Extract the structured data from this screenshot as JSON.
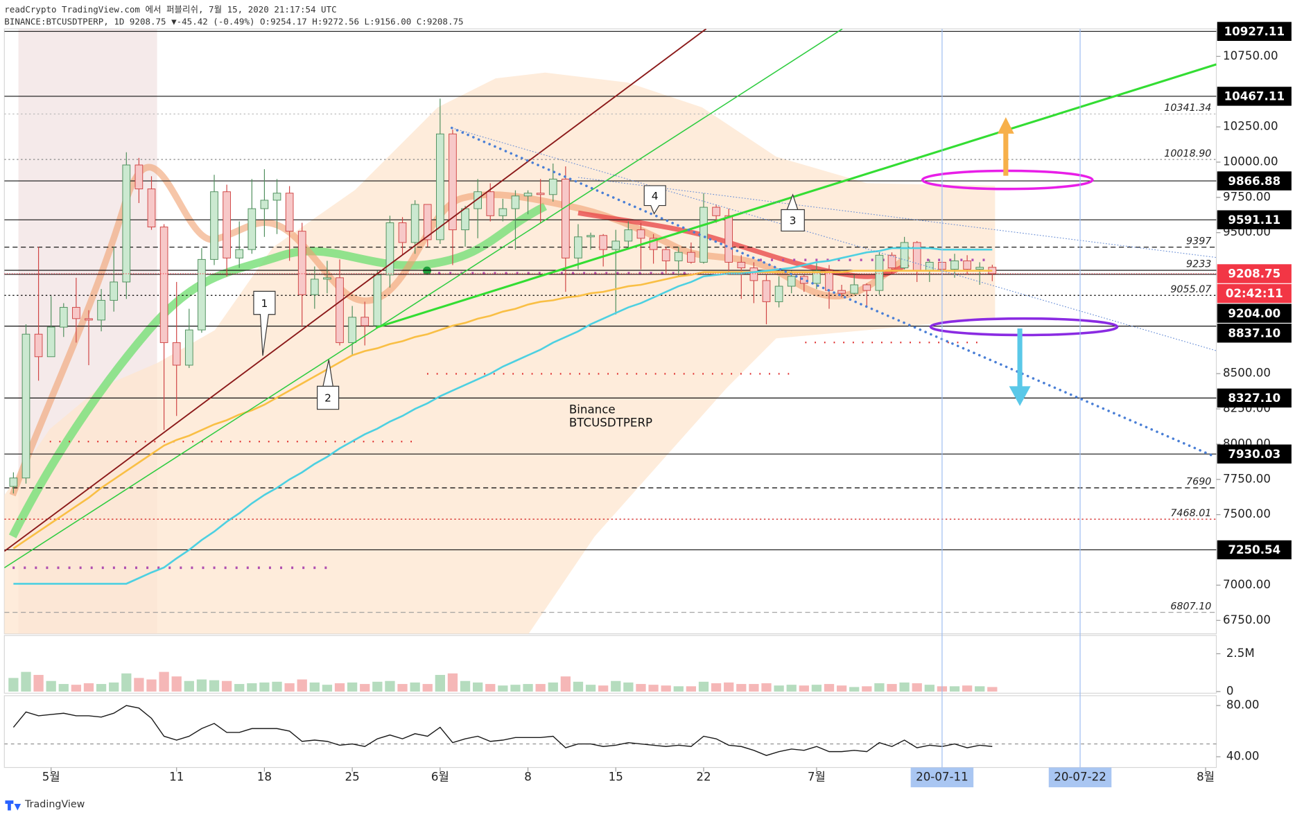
{
  "header": {
    "publisher": "readCrypto TradingView.com 에서 퍼블리쉬, 7월 15, 2020 21:17:54 UTC",
    "symbol_line": "BINANCE:BTCUSDTPERP, 1D 9208.75 ▼-45.42 (-0.49%) O:9254.17 H:9272.56 L:9156.00 C:9208.75"
  },
  "chart_data": [
    {
      "type": "candlestick",
      "x": [
        "2020-04-28",
        "2020-04-29",
        "2020-04-30",
        "2020-05-01",
        "2020-05-02",
        "2020-05-03",
        "2020-05-04",
        "2020-05-05",
        "2020-05-06",
        "2020-05-07",
        "2020-05-08",
        "2020-05-09",
        "2020-05-10",
        "2020-05-11",
        "2020-05-12",
        "2020-05-13",
        "2020-05-14",
        "2020-05-15",
        "2020-05-16",
        "2020-05-17",
        "2020-05-18",
        "2020-05-19",
        "2020-05-20",
        "2020-05-21",
        "2020-05-22",
        "2020-05-23",
        "2020-05-24",
        "2020-05-25",
        "2020-05-26",
        "2020-05-27",
        "2020-05-28",
        "2020-05-29",
        "2020-05-30",
        "2020-05-31",
        "2020-06-01",
        "2020-06-02",
        "2020-06-03",
        "2020-06-04",
        "2020-06-05",
        "2020-06-06",
        "2020-06-07",
        "2020-06-08",
        "2020-06-09",
        "2020-06-10",
        "2020-06-11",
        "2020-06-12",
        "2020-06-13",
        "2020-06-14",
        "2020-06-15",
        "2020-06-16",
        "2020-06-17",
        "2020-06-18",
        "2020-06-19",
        "2020-06-20",
        "2020-06-21",
        "2020-06-22",
        "2020-06-23",
        "2020-06-24",
        "2020-06-25",
        "2020-06-26",
        "2020-06-27",
        "2020-06-28",
        "2020-06-29",
        "2020-06-30",
        "2020-07-01",
        "2020-07-02",
        "2020-07-03",
        "2020-07-04",
        "2020-07-05",
        "2020-07-06",
        "2020-07-07",
        "2020-07-08",
        "2020-07-09",
        "2020-07-10",
        "2020-07-11",
        "2020-07-12",
        "2020-07-13",
        "2020-07-14",
        "2020-07-15"
      ],
      "open": [
        7700,
        7760,
        8780,
        8620,
        8830,
        8970,
        8890,
        8880,
        9020,
        9150,
        9980,
        9810,
        9540,
        8720,
        8560,
        8810,
        9310,
        9790,
        9320,
        9380,
        9670,
        9730,
        9780,
        9510,
        9060,
        9170,
        9180,
        8720,
        8900,
        8840,
        9200,
        9570,
        9430,
        9700,
        9450,
        10200,
        9520,
        9670,
        9790,
        9620,
        9670,
        9760,
        9780,
        9770,
        9880,
        9320,
        9470,
        9480,
        9380,
        9440,
        9520,
        9460,
        9380,
        9300,
        9360,
        9290,
        9680,
        9620,
        9290,
        9250,
        9160,
        9010,
        9120,
        9190,
        9140,
        9230,
        9090,
        9070,
        9130,
        9090,
        9340,
        9250,
        9430,
        9230,
        9290,
        9240,
        9300,
        9240,
        9254.17
      ],
      "high": [
        7800,
        8850,
        9400,
        9050,
        9000,
        9180,
        8950,
        9100,
        9400,
        10070,
        10030,
        9900,
        9560,
        9150,
        8960,
        9390,
        9910,
        9840,
        9580,
        9880,
        9950,
        9880,
        9830,
        9570,
        9260,
        9300,
        9310,
        8980,
        9010,
        9230,
        9620,
        9610,
        9730,
        9700,
        10450,
        10230,
        9690,
        9880,
        9850,
        9740,
        9800,
        9800,
        9880,
        9990,
        9970,
        9560,
        9500,
        9490,
        9520,
        9580,
        9570,
        9490,
        9400,
        9400,
        9430,
        9780,
        9700,
        9670,
        9340,
        9290,
        9200,
        9190,
        9230,
        9200,
        9290,
        9270,
        9130,
        9200,
        9140,
        9360,
        9360,
        9470,
        9440,
        9310,
        9300,
        9350,
        9340,
        9290,
        9272.56
      ],
      "low": [
        7650,
        7720,
        8450,
        8620,
        8760,
        8720,
        8560,
        8800,
        8940,
        9030,
        9710,
        9520,
        8100,
        8200,
        8540,
        8790,
        9270,
        9190,
        9250,
        9350,
        9470,
        9490,
        9300,
        8830,
        8960,
        9070,
        8700,
        8630,
        8700,
        8820,
        9110,
        9340,
        9350,
        9400,
        9420,
        9270,
        9400,
        9460,
        9580,
        9580,
        9380,
        9630,
        9570,
        9720,
        9080,
        9240,
        9380,
        9260,
        8920,
        9380,
        9240,
        9280,
        9210,
        9190,
        9280,
        9280,
        9570,
        9210,
        9030,
        9000,
        8850,
        8970,
        9070,
        9080,
        9100,
        8960,
        9040,
        9060,
        8980,
        9060,
        9210,
        9240,
        9150,
        9150,
        9200,
        9180,
        9200,
        9130,
        9156
      ],
      "close": [
        7760,
        8780,
        8620,
        8830,
        8970,
        8890,
        8880,
        9020,
        9150,
        9980,
        9810,
        9540,
        8720,
        8560,
        8810,
        9310,
        9790,
        9320,
        9380,
        9670,
        9730,
        9780,
        9510,
        9060,
        9170,
        9180,
        8720,
        8900,
        8840,
        9200,
        9570,
        9430,
        9700,
        9450,
        10200,
        9520,
        9670,
        9790,
        9620,
        9670,
        9760,
        9780,
        9770,
        9880,
        9320,
        9470,
        9480,
        9380,
        9440,
        9520,
        9460,
        9380,
        9300,
        9360,
        9290,
        9680,
        9620,
        9290,
        9250,
        9160,
        9010,
        9120,
        9190,
        9140,
        9230,
        9090,
        9070,
        9130,
        9090,
        9340,
        9250,
        9430,
        9230,
        9290,
        9240,
        9300,
        9240,
        9254.17,
        9208.75
      ],
      "up_color": "#cbe9d0",
      "up_border": "#4f8f5d",
      "down_color": "#f7c8c8",
      "down_border": "#d04545",
      "overlays": [
        {
          "color": "#f9bf45",
          "values": [
            7260,
            7320,
            7380,
            7440,
            7500,
            7560,
            7620,
            7690,
            7750,
            7810,
            7870,
            7930,
            7990,
            8030,
            8060,
            8100,
            8140,
            8170,
            8210,
            8240,
            8280,
            8330,
            8380,
            8430,
            8480,
            8530,
            8580,
            8630,
            8660,
            8680,
            8710,
            8730,
            8760,
            8780,
            8810,
            8840,
            8860,
            8890,
            8910,
            8940,
            8960,
            8990,
            9010,
            9020,
            9040,
            9050,
            9070,
            9080,
            9100,
            9120,
            9130,
            9150,
            9170,
            9190,
            9200,
            9220,
            9220,
            9220,
            9220,
            9220,
            9220,
            9220,
            9220,
            9220,
            9220,
            9220,
            9220,
            9230,
            9230,
            9230,
            9230,
            9230,
            9230,
            9230,
            9230,
            9230,
            9230,
            9230,
            9230
          ]
        },
        {
          "color": "#4dd0e1",
          "values": [
            7010,
            7010,
            7010,
            7010,
            7010,
            7010,
            7010,
            7010,
            7010,
            7010,
            7050,
            7090,
            7125,
            7190,
            7250,
            7320,
            7380,
            7450,
            7510,
            7580,
            7640,
            7690,
            7750,
            7800,
            7860,
            7910,
            7970,
            8020,
            8070,
            8110,
            8160,
            8200,
            8250,
            8290,
            8340,
            8380,
            8420,
            8460,
            8500,
            8550,
            8590,
            8630,
            8670,
            8720,
            8760,
            8800,
            8850,
            8890,
            8930,
            8970,
            9000,
            9040,
            9080,
            9120,
            9150,
            9190,
            9200,
            9210,
            9210,
            9220,
            9230,
            9240,
            9250,
            9270,
            9290,
            9300,
            9320,
            9340,
            9360,
            9370,
            9390,
            9390,
            9390,
            9390,
            9380,
            9380,
            9380,
            9380,
            9380
          ]
        }
      ],
      "ylim": [
        6655,
        10945
      ],
      "yticks": [
        {
          "value": 10750,
          "label": "10750.00"
        },
        {
          "value": 10250,
          "label": "10250.00"
        },
        {
          "value": 10000,
          "label": "10000.00"
        },
        {
          "value": 9750,
          "label": "9750.00"
        },
        {
          "value": 9500,
          "label": "9500.00"
        },
        {
          "value": 8500,
          "label": "8500.00"
        },
        {
          "value": 8250,
          "label": "8250.00"
        },
        {
          "value": 8000,
          "label": "8000.00"
        },
        {
          "value": 7750,
          "label": "7750.00"
        },
        {
          "value": 7500,
          "label": "7500.00"
        },
        {
          "value": 7000,
          "label": "7000.00"
        },
        {
          "value": 6750,
          "label": "6750.00"
        }
      ],
      "xticks": [
        {
          "value": "2020-05-01",
          "label": "5월"
        },
        {
          "value": "2020-05-11",
          "label": "11"
        },
        {
          "value": "2020-05-18",
          "label": "18"
        },
        {
          "value": "2020-05-25",
          "label": "25"
        },
        {
          "value": "2020-06-01",
          "label": "6월"
        },
        {
          "value": "2020-06-08",
          "label": "8"
        },
        {
          "value": "2020-06-15",
          "label": "15"
        },
        {
          "value": "2020-06-22",
          "label": "22"
        },
        {
          "value": "2020-07-01",
          "label": "7월"
        },
        {
          "value": "2020-08-01",
          "label": "8월"
        }
      ],
      "highlight_dates": [
        {
          "value": "2020-07-11",
          "label": "20-07-11"
        },
        {
          "value": "2020-07-22",
          "label": "20-07-22"
        }
      ],
      "levels": [
        {
          "value": 10927.11,
          "label": "10927.11",
          "kind": "box"
        },
        {
          "value": 10467.11,
          "label": "10467.11",
          "kind": "box"
        },
        {
          "value": 10341.34,
          "label": "10341.34",
          "kind": "note",
          "line": "dotted",
          "color": "#bbbbbb"
        },
        {
          "value": 10018.9,
          "label": "10018.90",
          "kind": "note",
          "line": "dotted",
          "color": "#888888"
        },
        {
          "value": 9866.88,
          "label": "9866.88",
          "kind": "box"
        },
        {
          "value": 9591.11,
          "label": "9591.11",
          "kind": "box"
        },
        {
          "value": 9397,
          "label": "9397",
          "kind": "note",
          "line": "dashed",
          "color": "#000000"
        },
        {
          "value": 9233,
          "label": "9233",
          "kind": "note",
          "line": "solid",
          "color": "#000000"
        },
        {
          "value": 9204,
          "label": "9204.00",
          "kind": "box"
        },
        {
          "value": 9055.07,
          "label": "9055.07",
          "kind": "note",
          "line": "dotted",
          "color": "#000000"
        },
        {
          "value": 8837.1,
          "label": "8837.10",
          "kind": "box"
        },
        {
          "value": 8327.1,
          "label": "8327.10",
          "kind": "box"
        },
        {
          "value": 7930.03,
          "label": "7930.03",
          "kind": "box"
        },
        {
          "value": 7690,
          "label": "7690",
          "kind": "note",
          "line": "dashed",
          "color": "#000000"
        },
        {
          "value": 7468.01,
          "label": "7468.01",
          "kind": "note",
          "line": "dotted",
          "color": "#cc0000"
        },
        {
          "value": 7250.54,
          "label": "7250.54",
          "kind": "box"
        },
        {
          "value": 6807.1,
          "label": "6807.10",
          "kind": "note",
          "line": "dashed",
          "color": "#999999"
        }
      ],
      "price_color": "#f23645",
      "countdown": "02:42:11",
      "annotations": [
        "1",
        "2",
        "3",
        "4",
        "Binance",
        "BTCUSDTPERP"
      ]
    },
    {
      "type": "bar",
      "values": [
        900000,
        1300000,
        1100000,
        700000,
        500000,
        450000,
        550000,
        500000,
        600000,
        1200000,
        900000,
        800000,
        1300000,
        1000000,
        700000,
        800000,
        750000,
        700000,
        500000,
        550000,
        600000,
        650000,
        550000,
        800000,
        600000,
        450000,
        550000,
        600000,
        500000,
        650000,
        700000,
        500000,
        600000,
        500000,
        1100000,
        1200000,
        700000,
        600000,
        500000,
        400000,
        450000,
        500000,
        500000,
        600000,
        1000000,
        650000,
        450000,
        400000,
        700000,
        600000,
        500000,
        450000,
        400000,
        350000,
        350000,
        650000,
        550000,
        600000,
        500000,
        500000,
        550000,
        400000,
        450000,
        400000,
        450000,
        500000,
        400000,
        300000,
        350000,
        550000,
        500000,
        600000,
        550000,
        450000,
        350000,
        350000,
        400000,
        350000,
        300000
      ],
      "up_color": "#b5dcbe",
      "down_color": "#f5b7b7",
      "ylim": [
        0,
        3600000
      ],
      "yticks": [
        {
          "value": 2500000,
          "label": "2.5M"
        },
        0
      ]
    },
    {
      "type": "line",
      "values": [
        63,
        75,
        72,
        73,
        74,
        72,
        72,
        71,
        74,
        80,
        78,
        70,
        56,
        53,
        56,
        62,
        66,
        59,
        59,
        62,
        62,
        62,
        60,
        52,
        53,
        52,
        49,
        50,
        48,
        54,
        57,
        54,
        58,
        56,
        63,
        51,
        54,
        56,
        52,
        53,
        55,
        55,
        55,
        56,
        47,
        50,
        50,
        48,
        49,
        51,
        50,
        49,
        48,
        49,
        48,
        56,
        54,
        49,
        48,
        45,
        41,
        44,
        46,
        45,
        48,
        44,
        44,
        45,
        44,
        51,
        48,
        53,
        47,
        49,
        48,
        50,
        47,
        49,
        48
      ],
      "color": "#1a1a1a",
      "reference": 50,
      "ylim": [
        31.6,
        87.7
      ],
      "yticks": [
        {
          "value": 80,
          "label": "80.00"
        },
        {
          "value": 40,
          "label": "40.00"
        }
      ]
    }
  ],
  "footer": {
    "brand": "TradingView"
  }
}
